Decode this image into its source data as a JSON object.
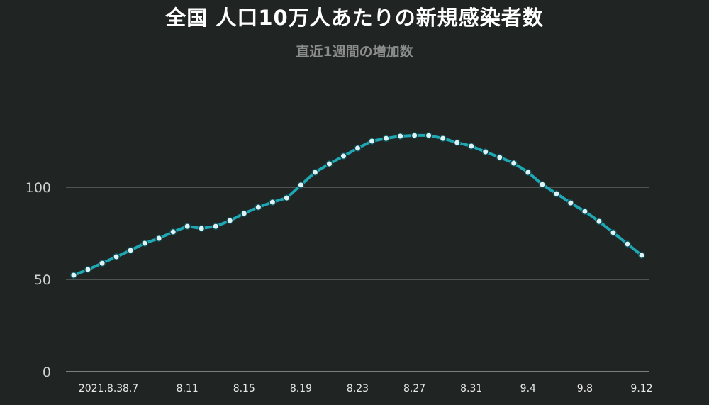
{
  "chart_data": {
    "type": "line",
    "title": "全国 人口10万人あたりの新規感染者数",
    "subtitle": "直近1週間の増加数",
    "xlabel": "",
    "ylabel": "",
    "ylim": [
      0,
      150
    ],
    "yticks": [
      0,
      50,
      100
    ],
    "grid": true,
    "x_tick_labels": [
      "2021.8.3",
      "8.7",
      "8.11",
      "8.15",
      "8.19",
      "8.23",
      "8.27",
      "8.31",
      "9.4",
      "9.8",
      "9.12"
    ],
    "x_tick_indices": [
      0,
      4,
      8,
      12,
      16,
      20,
      24,
      28,
      32,
      36,
      40
    ],
    "x": [
      "8.3",
      "8.4",
      "8.5",
      "8.6",
      "8.7",
      "8.8",
      "8.9",
      "8.10",
      "8.11",
      "8.12",
      "8.13",
      "8.14",
      "8.15",
      "8.16",
      "8.17",
      "8.18",
      "8.19",
      "8.20",
      "8.21",
      "8.22",
      "8.23",
      "8.24",
      "8.25",
      "8.26",
      "8.27",
      "8.28",
      "8.29",
      "8.30",
      "8.31",
      "9.1",
      "9.2",
      "9.3",
      "9.4",
      "9.5",
      "9.6",
      "9.7",
      "9.8",
      "9.9",
      "9.10",
      "9.11",
      "9.12"
    ],
    "series": [
      {
        "values": [
          52.3,
          55.4,
          58.8,
          62.3,
          65.8,
          69.6,
          72.3,
          75.8,
          78.8,
          77.7,
          78.8,
          81.9,
          85.8,
          89.2,
          91.9,
          94.2,
          101.2,
          108.1,
          112.7,
          116.9,
          121.2,
          125.0,
          126.5,
          127.7,
          128.1,
          128.1,
          126.5,
          124.2,
          122.3,
          119.2,
          116.2,
          113.1,
          108.1,
          101.5,
          96.5,
          91.5,
          86.9,
          81.5,
          75.4,
          69.2,
          63.1
        ],
        "color": "#1fa7b4"
      }
    ],
    "colors": {
      "background": "#202423",
      "line": "#1fa7b4",
      "marker_fill": "#dff3f4",
      "marker_stroke": "#0d4a52",
      "grid": "#6a6e6d",
      "axis": "#9a9d9c"
    }
  }
}
